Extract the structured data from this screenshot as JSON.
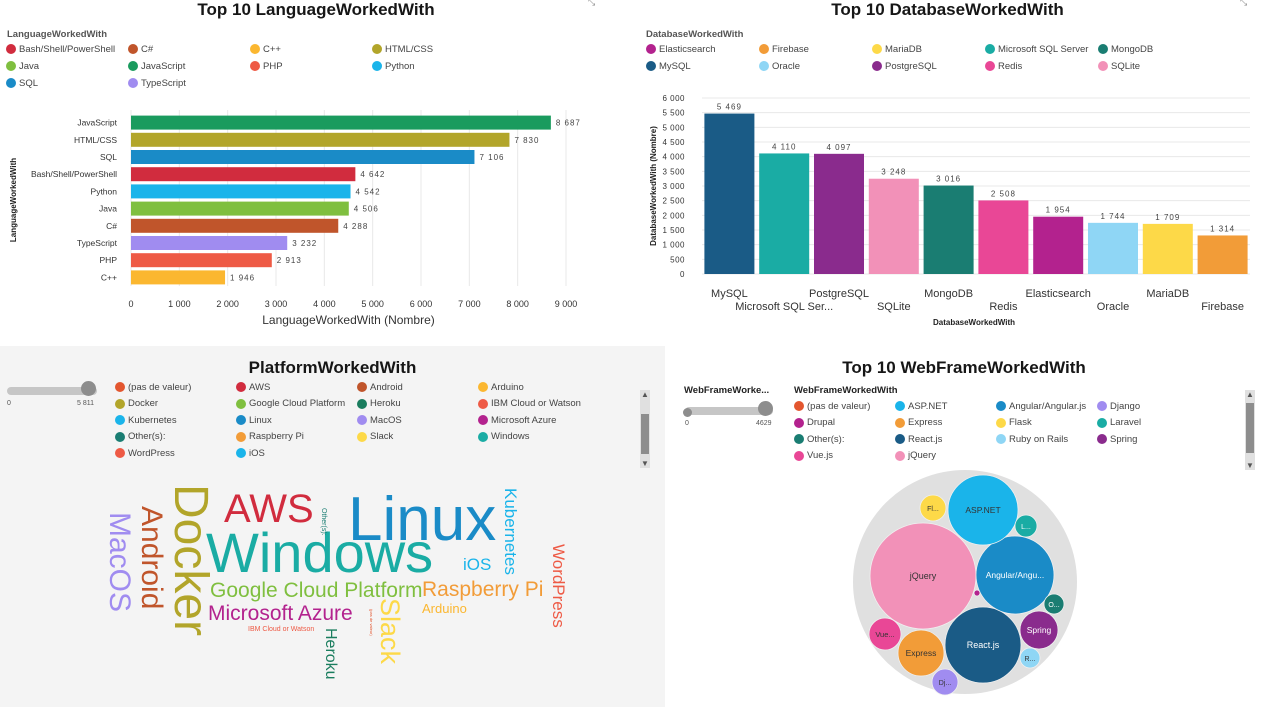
{
  "panel1": {
    "title": "Top 10 LanguageWorkedWith",
    "legend_title": "LanguageWorkedWith",
    "legend": [
      {
        "label": "Bash/Shell/PowerShell",
        "color": "#d12c3e"
      },
      {
        "label": "C#",
        "color": "#c0552b"
      },
      {
        "label": "C++",
        "color": "#fbb730"
      },
      {
        "label": "HTML/CSS",
        "color": "#b2a52a"
      },
      {
        "label": "Java",
        "color": "#7fbf3f"
      },
      {
        "label": "JavaScript",
        "color": "#1a9b5e"
      },
      {
        "label": "PHP",
        "color": "#ee5a45"
      },
      {
        "label": "Python",
        "color": "#1ab4ea"
      },
      {
        "label": "SQL",
        "color": "#1a8bc7"
      },
      {
        "label": "TypeScript",
        "color": "#a08cf0"
      }
    ]
  },
  "panel2": {
    "title": "Top 10 DatabaseWorkedWith",
    "legend_title": "DatabaseWorkedWith",
    "legend": [
      {
        "label": "Elasticsearch",
        "color": "#b3228e"
      },
      {
        "label": "Firebase",
        "color": "#f29c38"
      },
      {
        "label": "MariaDB",
        "color": "#fdd948"
      },
      {
        "label": "Microsoft SQL Server",
        "color": "#1aaca4"
      },
      {
        "label": "MongoDB",
        "color": "#1a7d72"
      },
      {
        "label": "MySQL",
        "color": "#1a5b86"
      },
      {
        "label": "Oracle",
        "color": "#8fd6f5"
      },
      {
        "label": "PostgreSQL",
        "color": "#8a2b8d"
      },
      {
        "label": "Redis",
        "color": "#e94796"
      },
      {
        "label": "SQLite",
        "color": "#f291b8"
      }
    ]
  },
  "panel3": {
    "title": "PlatformWorkedWith",
    "slider_min": "0",
    "slider_max": "5 811",
    "legend": [
      {
        "label": "(pas de valeur)",
        "color": "#e3562f"
      },
      {
        "label": "AWS",
        "color": "#d12c3e"
      },
      {
        "label": "Android",
        "color": "#c0552b"
      },
      {
        "label": "Arduino",
        "color": "#fbb730"
      },
      {
        "label": "Docker",
        "color": "#b2a52a"
      },
      {
        "label": "Google Cloud Platform",
        "color": "#7fbf3f"
      },
      {
        "label": "Heroku",
        "color": "#1a7d5e"
      },
      {
        "label": "IBM Cloud or Watson",
        "color": "#ee5a45"
      },
      {
        "label": "Kubernetes",
        "color": "#1ab4ea"
      },
      {
        "label": "Linux",
        "color": "#1a8bc7"
      },
      {
        "label": "MacOS",
        "color": "#a08cf0"
      },
      {
        "label": "Microsoft Azure",
        "color": "#b3228e"
      },
      {
        "label": "Other(s):",
        "color": "#1a7d72"
      },
      {
        "label": "Raspberry Pi",
        "color": "#f29c38"
      },
      {
        "label": "Slack",
        "color": "#fdd948"
      },
      {
        "label": "Windows",
        "color": "#1aaca4"
      },
      {
        "label": "WordPress",
        "color": "#ee5a45"
      },
      {
        "label": "iOS",
        "color": "#1ab4ea"
      }
    ],
    "words": [
      {
        "text": "Linux",
        "color": "#1a8bc7"
      },
      {
        "text": "Windows",
        "color": "#1aaca4"
      },
      {
        "text": "Docker",
        "color": "#b2a52a"
      },
      {
        "text": "AWS",
        "color": "#d12c3e"
      },
      {
        "text": "Android",
        "color": "#c0552b"
      },
      {
        "text": "MacOS",
        "color": "#a08cf0"
      },
      {
        "text": "Google Cloud Platform",
        "color": "#7fbf3f"
      },
      {
        "text": "Microsoft Azure",
        "color": "#b3228e"
      },
      {
        "text": "Raspberry Pi",
        "color": "#f29c38"
      },
      {
        "text": "Kubernetes",
        "color": "#1ab4ea"
      },
      {
        "text": "iOS",
        "color": "#1ab4ea"
      },
      {
        "text": "WordPress",
        "color": "#ee5a45"
      },
      {
        "text": "Slack",
        "color": "#fdd948"
      },
      {
        "text": "Heroku",
        "color": "#1a7d5e"
      },
      {
        "text": "Arduino",
        "color": "#fbb730"
      },
      {
        "text": "IBM Cloud or Watson",
        "color": "#ee5a45"
      },
      {
        "text": "Other(s):",
        "color": "#1a7d72"
      },
      {
        "text": "(pas de valeur)",
        "color": "#e3562f"
      }
    ]
  },
  "panel4": {
    "title": "Top 10 WebFrameWorkedWith",
    "slider_title": "WebFrameWorke...",
    "slider_min": "0",
    "slider_max": "4629",
    "legend_title": "WebFrameWorkedWith",
    "legend": [
      {
        "label": "(pas de valeur)",
        "color": "#e3562f"
      },
      {
        "label": "ASP.NET",
        "color": "#1ab4ea"
      },
      {
        "label": "Angular/Angular.js",
        "color": "#1a8bc7"
      },
      {
        "label": "Django",
        "color": "#a08cf0"
      },
      {
        "label": "Drupal",
        "color": "#b3228e"
      },
      {
        "label": "Express",
        "color": "#f29c38"
      },
      {
        "label": "Flask",
        "color": "#fdd948"
      },
      {
        "label": "Laravel",
        "color": "#1aaca4"
      },
      {
        "label": "Other(s):",
        "color": "#1a7d72"
      },
      {
        "label": "React.js",
        "color": "#1a5b86"
      },
      {
        "label": "Ruby on Rails",
        "color": "#8fd6f5"
      },
      {
        "label": "Spring",
        "color": "#8a2b8d"
      },
      {
        "label": "Vue.js",
        "color": "#e94796"
      },
      {
        "label": "jQuery",
        "color": "#f291b8"
      }
    ],
    "bubbles": [
      {
        "label": "jQuery",
        "color": "#f291b8"
      },
      {
        "label": "React.js",
        "color": "#1a5b86"
      },
      {
        "label": "Angular/Angu...",
        "color": "#1a8bc7"
      },
      {
        "label": "ASP.NET",
        "color": "#1ab4ea"
      },
      {
        "label": "Express",
        "color": "#f29c38"
      },
      {
        "label": "Spring",
        "color": "#8a2b8d"
      },
      {
        "label": "Vue...",
        "color": "#e94796"
      },
      {
        "label": "Fl...",
        "color": "#fdd948"
      },
      {
        "label": "Dj...",
        "color": "#a08cf0"
      },
      {
        "label": "L...",
        "color": "#1aaca4"
      },
      {
        "label": "O...",
        "color": "#1a7d72"
      },
      {
        "label": "R...",
        "color": "#8fd6f5"
      },
      {
        "label": "",
        "color": "#b3228e"
      }
    ]
  },
  "chart_data": [
    {
      "type": "bar",
      "orientation": "horizontal",
      "title": "Top 10 LanguageWorkedWith",
      "xlabel": "LanguageWorkedWith (Nombre)",
      "ylabel": "LanguageWorkedWith",
      "categories": [
        "JavaScript",
        "HTML/CSS",
        "SQL",
        "Bash/Shell/PowerShell",
        "Python",
        "Java",
        "C#",
        "TypeScript",
        "PHP",
        "C++"
      ],
      "values": [
        8687,
        7830,
        7106,
        4642,
        4542,
        4506,
        4288,
        3232,
        2913,
        1946
      ],
      "colors": [
        "#1a9b5e",
        "#b2a52a",
        "#1a8bc7",
        "#d12c3e",
        "#1ab4ea",
        "#7fbf3f",
        "#c0552b",
        "#a08cf0",
        "#ee5a45",
        "#fbb730"
      ],
      "xlim": [
        0,
        9000
      ],
      "xticks": [
        0,
        1000,
        2000,
        3000,
        4000,
        5000,
        6000,
        7000,
        8000,
        9000
      ],
      "grid": true
    },
    {
      "type": "bar",
      "title": "Top 10 DatabaseWorkedWith",
      "xlabel": "DatabaseWorkedWith",
      "ylabel": "DatabaseWorkedWith (Nombre)",
      "categories": [
        "MySQL",
        "Microsoft SQL Ser...",
        "PostgreSQL",
        "SQLite",
        "MongoDB",
        "Redis",
        "Elasticsearch",
        "Oracle",
        "MariaDB",
        "Firebase"
      ],
      "values": [
        5469,
        4110,
        4097,
        3248,
        3016,
        2508,
        1954,
        1744,
        1709,
        1314
      ],
      "colors": [
        "#1a5b86",
        "#1aaca4",
        "#8a2b8d",
        "#f291b8",
        "#1a7d72",
        "#e94796",
        "#b3228e",
        "#8fd6f5",
        "#fdd948",
        "#f29c38"
      ],
      "ylim": [
        0,
        6000
      ],
      "yticks": [
        0,
        500,
        1000,
        1500,
        2000,
        2500,
        3000,
        3500,
        4000,
        4500,
        5000,
        5500,
        6000
      ],
      "grid": true
    }
  ]
}
